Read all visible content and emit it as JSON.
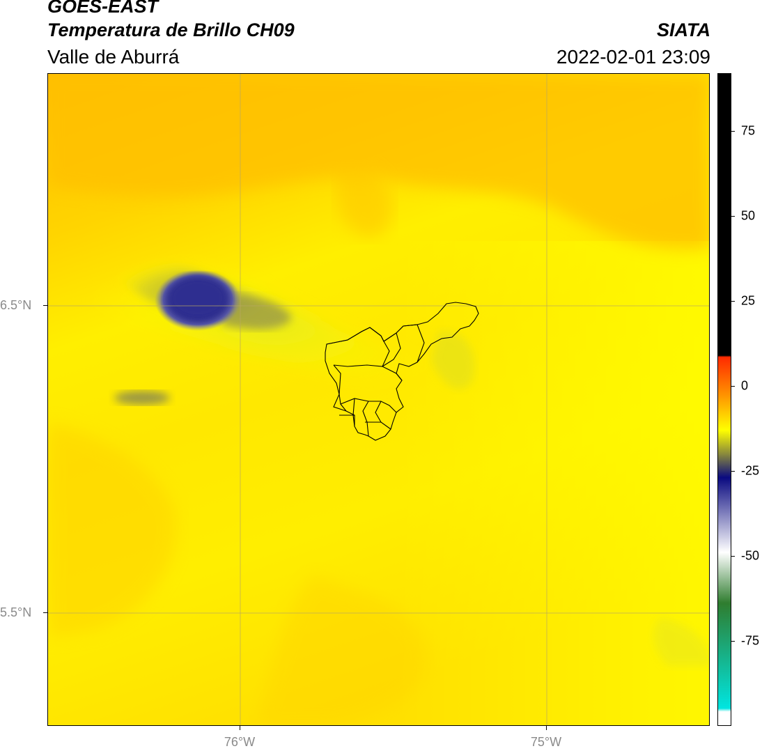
{
  "header": {
    "satellite": "GOES-EAST",
    "product": "Temperatura de Brillo CH09",
    "region": "Valle de Aburrá",
    "organization": "SIATA",
    "datetime": "2022-02-01 23:09"
  },
  "axes": {
    "lat_ticks": [
      {
        "label": "6.5°N",
        "value": 6.5
      },
      {
        "label": "5.5°N",
        "value": 5.5
      }
    ],
    "lon_ticks": [
      {
        "label": "76°W",
        "value": -76
      },
      {
        "label": "75°W",
        "value": -75
      }
    ]
  },
  "colorbar": {
    "ticks": [
      {
        "label": "75",
        "value": 75
      },
      {
        "label": "50",
        "value": 50
      },
      {
        "label": "25",
        "value": 25
      },
      {
        "label": "0",
        "value": 0
      },
      {
        "label": "-25",
        "value": -25
      },
      {
        "label": "-50",
        "value": -50
      },
      {
        "label": "-75",
        "value": -75
      }
    ],
    "range": [
      -100,
      92
    ],
    "colors": {
      "black": "#000000",
      "red": "#ff2a00",
      "orange": "#ff8c00",
      "yellow": "#ffff00",
      "olive": "#8a8a3c",
      "navy": "#0a0a80",
      "white": "#ffffff",
      "green": "#2f7d2f",
      "cyan": "#00e5e0"
    }
  },
  "map": {
    "background_colors": {
      "orange_yellow": "#ffc200",
      "yellow": "#ffff00",
      "deep_cloud": "#2a2a8a"
    }
  }
}
